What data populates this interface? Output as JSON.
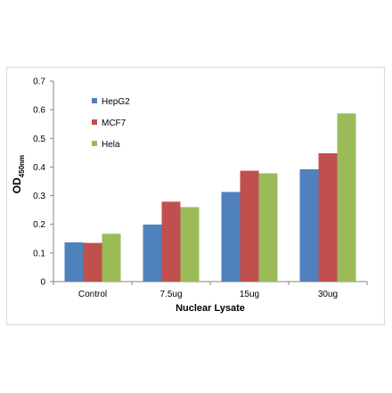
{
  "chart_data": {
    "type": "bar",
    "categories": [
      "Control",
      "7.5ug",
      "15ug",
      "30ug"
    ],
    "series": [
      {
        "name": "HepG2",
        "color": "#4f81bd",
        "values": [
          0.137,
          0.199,
          0.313,
          0.392
        ]
      },
      {
        "name": "MCF7",
        "color": "#c0504d",
        "values": [
          0.135,
          0.279,
          0.387,
          0.448
        ]
      },
      {
        "name": "Hela",
        "color": "#9bbb59",
        "values": [
          0.167,
          0.26,
          0.378,
          0.587
        ]
      }
    ],
    "title": "",
    "xlabel": "Nuclear Lysate",
    "ylabel_main": "OD",
    "ylabel_sub": "450nm",
    "ylim": [
      0,
      0.7
    ],
    "yticks": [
      "0",
      "0.1",
      "0.2",
      "0.3",
      "0.4",
      "0.5",
      "0.6",
      "0.7"
    ],
    "grid": false,
    "legend_position": "top-left"
  }
}
